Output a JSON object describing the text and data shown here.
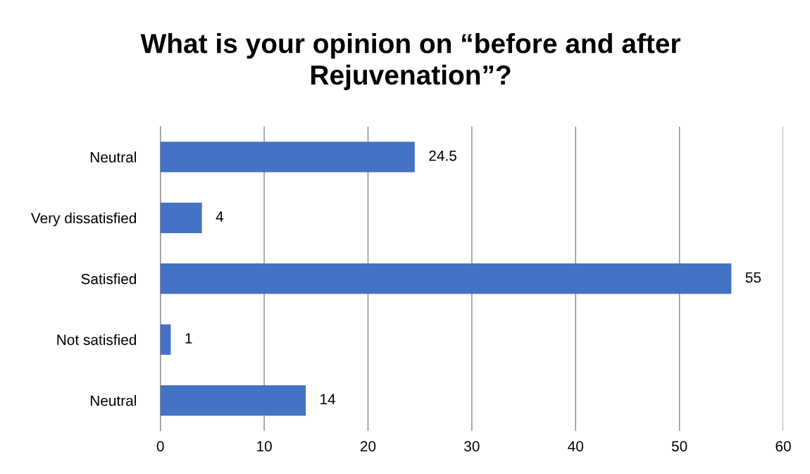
{
  "chart_data": {
    "type": "bar",
    "orientation": "horizontal",
    "title": "What is your opinion on “before and after\nRejuvenation”?",
    "categories": [
      "Neutral",
      "Very dissatisfied",
      "Satisfied",
      "Not satisfied",
      "Neutral"
    ],
    "values": [
      24.5,
      4,
      55,
      1,
      14
    ],
    "color": "#4472c4",
    "xlim": [
      0,
      60
    ],
    "xticks": [
      0,
      10,
      20,
      30,
      40,
      50,
      60
    ],
    "grid": "x",
    "data_labels": true,
    "legend": false
  }
}
